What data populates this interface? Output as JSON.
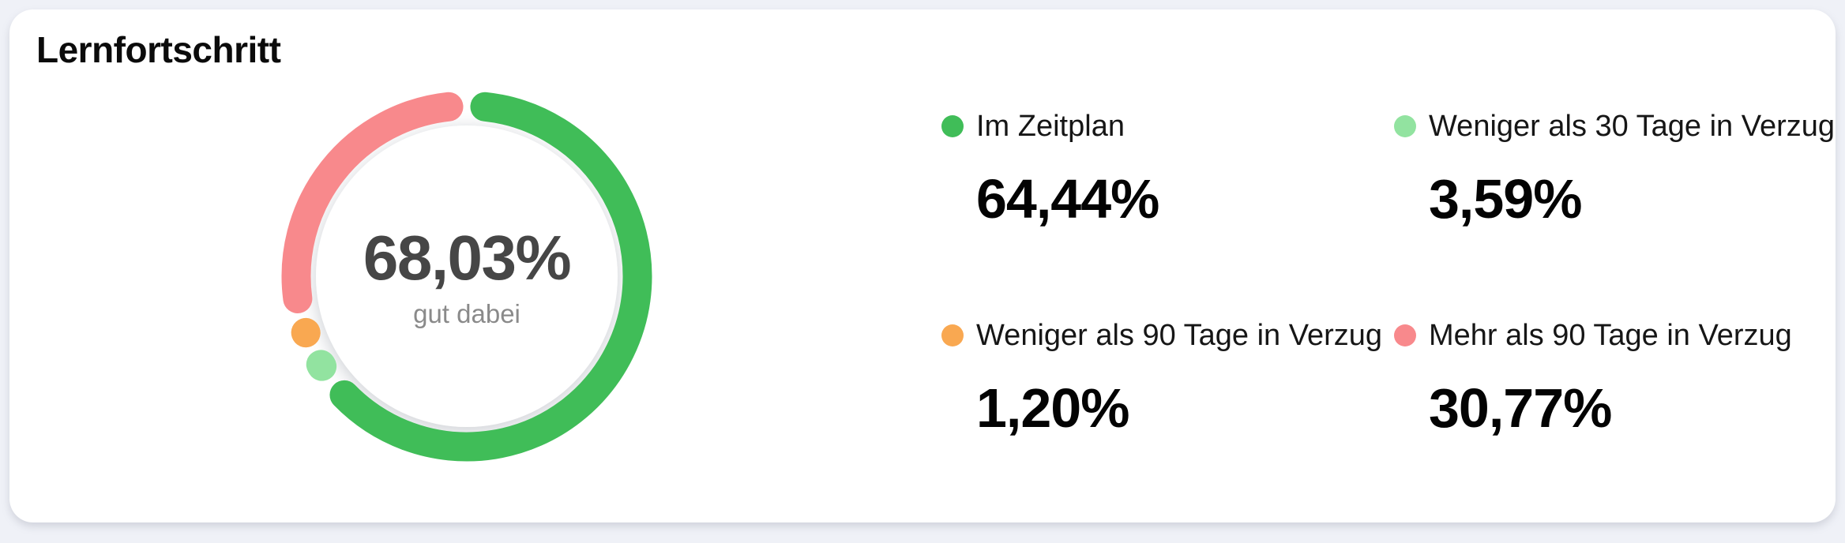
{
  "page": {
    "background_color": "#EFF1F7"
  },
  "chart_data": {
    "type": "donut",
    "title": "Lernfortschritt",
    "legend_position": "right",
    "direction": "clockwise",
    "start_angle_deg": 0,
    "center": {
      "value": 68.03,
      "value_label": "68,03%",
      "sublabel": "gut dabei",
      "value_color": "#464646",
      "sublabel_color": "#8A8A8A"
    },
    "segments": [
      {
        "label": "Im Zeitplan",
        "value": 64.44,
        "value_label": "64,44%",
        "color": "#40BD58"
      },
      {
        "label": "Weniger als 30 Tage in Verzug",
        "value": 3.59,
        "value_label": "3,59%",
        "color": "#92E3A0"
      },
      {
        "label": "Weniger als 90 Tage in Verzug",
        "value": 1.2,
        "value_label": "1,20%",
        "color": "#F9A851"
      },
      {
        "label": "Mehr als 90 Tage in Verzug",
        "value": 30.77,
        "value_label": "30,77%",
        "color": "#F8898C"
      }
    ]
  }
}
